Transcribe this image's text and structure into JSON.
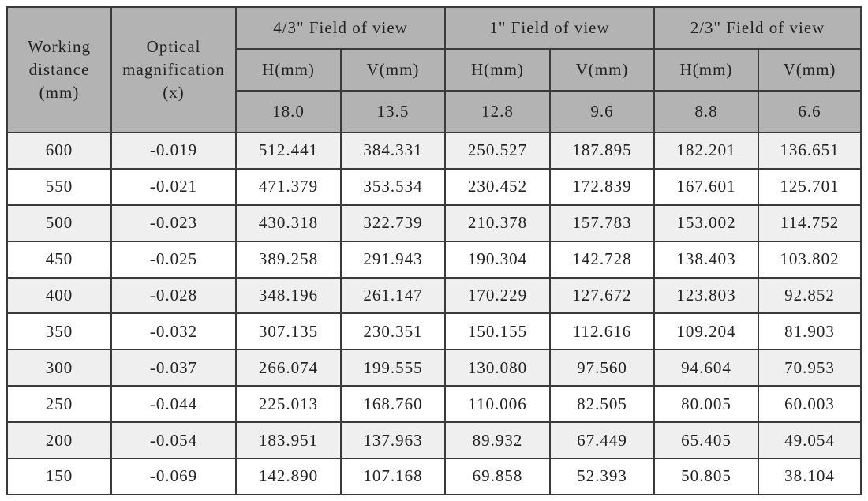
{
  "header": {
    "working_distance": "Working distance (mm)",
    "magnification": "Optical magnification (x)",
    "groups": [
      {
        "title": "4/3\" Field of view",
        "h": "H(mm)",
        "v": "V(mm)",
        "h_size": "18.0",
        "v_size": "13.5"
      },
      {
        "title": "1\" Field of view",
        "h": "H(mm)",
        "v": "V(mm)",
        "h_size": "12.8",
        "v_size": "9.6"
      },
      {
        "title": "2/3\" Field of view",
        "h": "H(mm)",
        "v": "V(mm)",
        "h_size": "8.8",
        "v_size": "6.6"
      }
    ]
  },
  "table": {
    "rows": [
      [
        "600",
        "-0.019",
        "512.441",
        "384.331",
        "250.527",
        "187.895",
        "182.201",
        "136.651"
      ],
      [
        "550",
        "-0.021",
        "471.379",
        "353.534",
        "230.452",
        "172.839",
        "167.601",
        "125.701"
      ],
      [
        "500",
        "-0.023",
        "430.318",
        "322.739",
        "210.378",
        "157.783",
        "153.002",
        "114.752"
      ],
      [
        "450",
        "-0.025",
        "389.258",
        "291.943",
        "190.304",
        "142.728",
        "138.403",
        "103.802"
      ],
      [
        "400",
        "-0.028",
        "348.196",
        "261.147",
        "170.229",
        "127.672",
        "123.803",
        "92.852"
      ],
      [
        "350",
        "-0.032",
        "307.135",
        "230.351",
        "150.155",
        "112.616",
        "109.204",
        "81.903"
      ],
      [
        "300",
        "-0.037",
        "266.074",
        "199.555",
        "130.080",
        "97.560",
        "94.604",
        "70.953"
      ],
      [
        "250",
        "-0.044",
        "225.013",
        "168.760",
        "110.006",
        "82.505",
        "80.005",
        "60.003"
      ],
      [
        "200",
        "-0.054",
        "183.951",
        "137.963",
        "89.932",
        "67.449",
        "65.405",
        "49.054"
      ],
      [
        "150",
        "-0.069",
        "142.890",
        "107.168",
        "69.858",
        "52.393",
        "50.805",
        "38.104"
      ]
    ]
  }
}
